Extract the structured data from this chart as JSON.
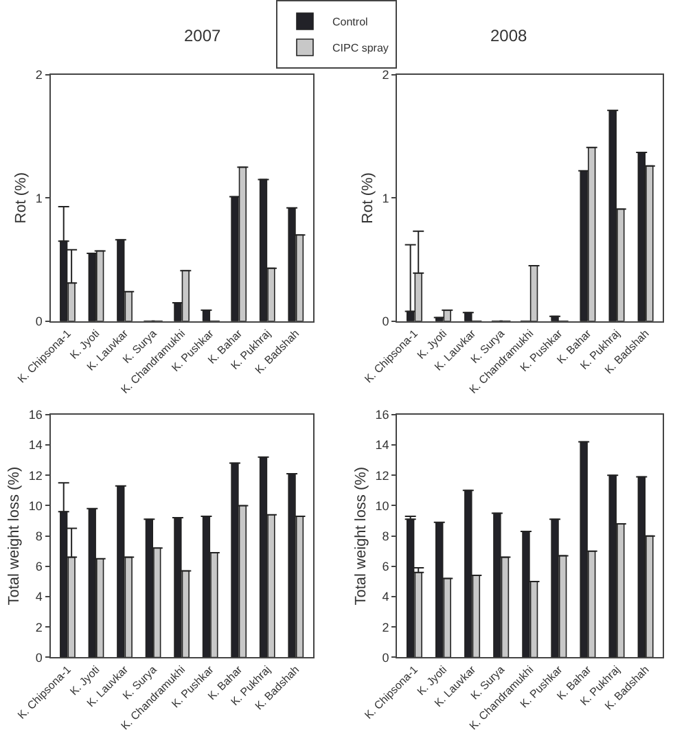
{
  "chart_data": [
    {
      "type": "bar",
      "title": "2007",
      "ylabel": "Rot (%)",
      "legend": "top",
      "ylim": [
        0,
        2
      ],
      "yticks": [
        0,
        1,
        2
      ],
      "categories": [
        "K. Chipsona-1",
        "K. Jyoti",
        "K. Lauvkar",
        "K. Surya",
        "K. Chandramukhi",
        "K. Pushkar",
        "K. Bahar",
        "K. Pukhraj",
        "K. Badshah"
      ],
      "series": [
        {
          "name": "Control",
          "color": "#222228",
          "values": [
            0.65,
            0.55,
            0.66,
            0,
            0.15,
            0.09,
            1.01,
            1.15,
            0.92
          ],
          "errors": [
            [
              0.65,
              0.93
            ],
            null,
            null,
            null,
            null,
            null,
            null,
            null,
            null
          ]
        },
        {
          "name": "CIPC spray",
          "color": "#c8c8c8",
          "values": [
            0.31,
            0.57,
            0.24,
            0,
            0.41,
            0,
            1.25,
            0.43,
            0.7
          ],
          "errors": [
            [
              0.31,
              0.58
            ],
            null,
            null,
            null,
            null,
            null,
            null,
            null,
            null
          ]
        }
      ]
    },
    {
      "type": "bar",
      "title": "2008",
      "ylabel": "Rot (%)",
      "ylim": [
        0,
        2
      ],
      "yticks": [
        0,
        1,
        2
      ],
      "categories": [
        "K. Chipsona-1",
        "K. Jyoti",
        "K. Lauvkar",
        "K. Surya",
        "K. Chandramukhi",
        "K. Pushkar",
        "K. Bahar",
        "K. Pukhraj",
        "K. Badshah"
      ],
      "series": [
        {
          "color": "#222228",
          "values": [
            0.08,
            0.03,
            0.07,
            0,
            0,
            0.04,
            1.22,
            1.71,
            1.37
          ],
          "errors": [
            [
              0.08,
              0.62
            ],
            null,
            null,
            null,
            null,
            null,
            null,
            null,
            null
          ]
        },
        {
          "color": "#c8c8c8",
          "values": [
            0.39,
            0.09,
            0,
            0,
            0.45,
            0,
            1.41,
            0.91,
            1.26
          ],
          "errors": [
            [
              0.39,
              0.73
            ],
            null,
            null,
            null,
            null,
            null,
            null,
            null,
            null
          ]
        }
      ]
    },
    {
      "type": "bar",
      "ylabel": "Total weight loss (%)",
      "ylim": [
        0,
        16
      ],
      "yticks": [
        0,
        2,
        4,
        6,
        8,
        10,
        12,
        14,
        16
      ],
      "categories": [
        "K. Chipsona-1",
        "K. Jyoti",
        "K. Lauvkar",
        "K. Surya",
        "K. Chandramukhi",
        "K. Pushkar",
        "K. Bahar",
        "K. Pukhraj",
        "K. Badshah"
      ],
      "series": [
        {
          "color": "#222228",
          "values": [
            9.6,
            9.8,
            11.3,
            9.1,
            9.2,
            9.3,
            12.8,
            13.2,
            12.1
          ],
          "errors": [
            [
              9.6,
              11.5
            ],
            null,
            null,
            null,
            null,
            null,
            null,
            null,
            null
          ]
        },
        {
          "color": "#c8c8c8",
          "values": [
            6.6,
            6.5,
            6.6,
            7.2,
            5.7,
            6.9,
            10.0,
            9.4,
            9.3
          ],
          "errors": [
            [
              6.6,
              8.5
            ],
            null,
            null,
            null,
            null,
            null,
            null,
            null,
            null
          ]
        }
      ]
    },
    {
      "type": "bar",
      "ylabel": "Total weight loss (%)",
      "ylim": [
        0,
        16
      ],
      "yticks": [
        0,
        2,
        4,
        6,
        8,
        10,
        12,
        14,
        16
      ],
      "categories": [
        "K. Chipsona-1",
        "K. Jyoti",
        "K. Lauvkar",
        "K. Surya",
        "K. Chandramukhi",
        "K. Pushkar",
        "K. Bahar",
        "K. Pukhraj",
        "K. Badshah"
      ],
      "series": [
        {
          "color": "#222228",
          "values": [
            9.1,
            8.9,
            11.0,
            9.5,
            8.3,
            9.1,
            14.2,
            12.0,
            11.9
          ],
          "errors": [
            [
              9.1,
              9.3
            ],
            null,
            null,
            null,
            null,
            null,
            null,
            null,
            null
          ]
        },
        {
          "color": "#c8c8c8",
          "values": [
            5.6,
            5.2,
            5.4,
            6.6,
            5.0,
            6.7,
            7.0,
            8.8,
            8.0
          ],
          "errors": [
            [
              5.6,
              5.9
            ],
            null,
            null,
            null,
            null,
            null,
            null,
            null,
            null
          ]
        }
      ]
    }
  ]
}
